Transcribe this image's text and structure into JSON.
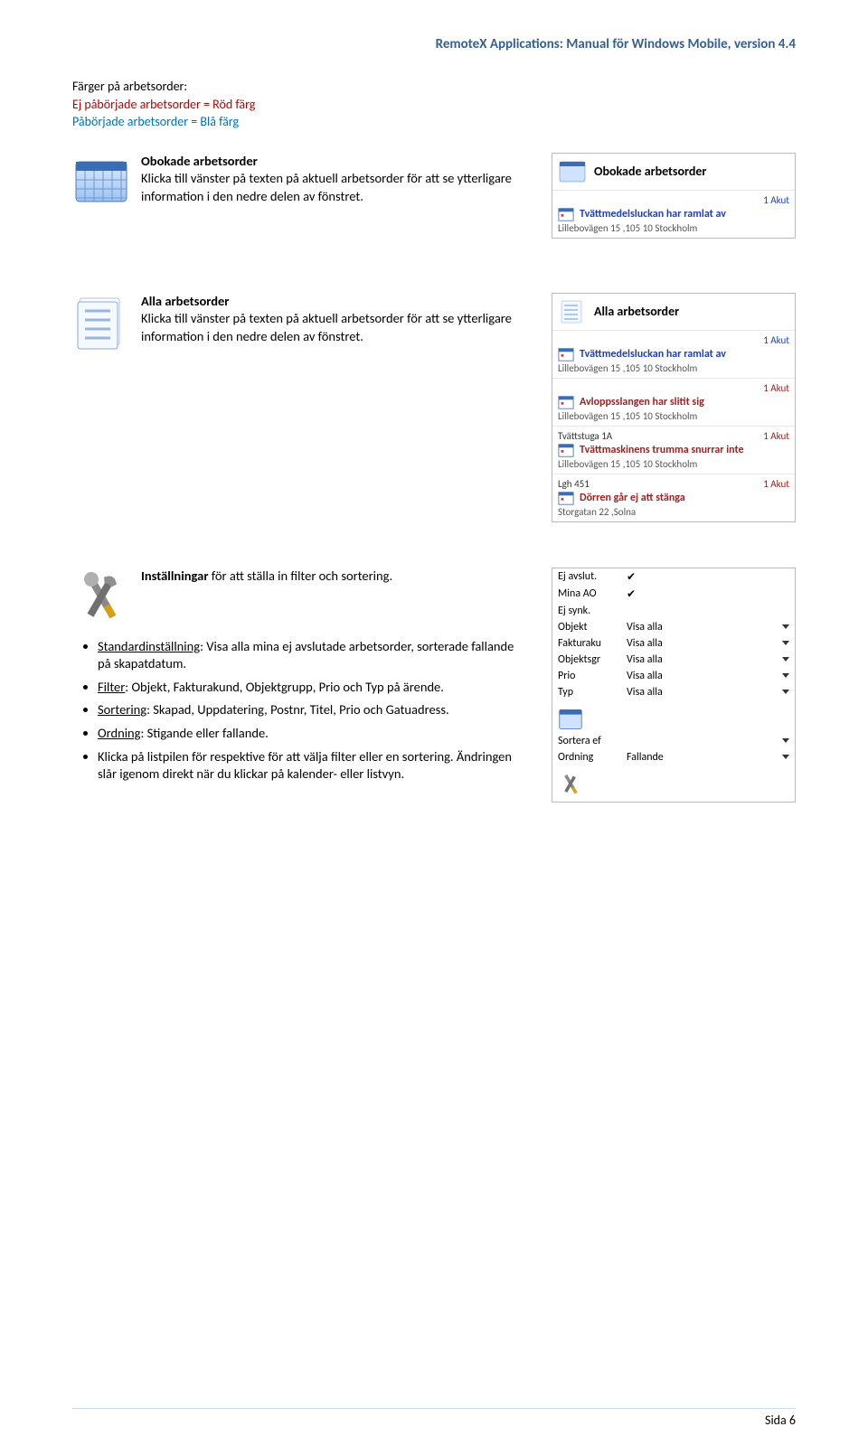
{
  "doc_header": {
    "text": "RemoteX Applications: Manual för Windows Mobile, version 4.4",
    "color": "#365f91"
  },
  "legend": {
    "line1": "Färger på arbetsorder:",
    "line2": "Ej påbörjade arbetsorder = Röd färg",
    "line3": "Påbörjade arbetsorder = Blå färg"
  },
  "section1": {
    "title": "Obokade arbetsorder",
    "body": "Klicka till vänster på texten på aktuell arbetsorder för att se ytterligare information i den nedre delen av fönstret.",
    "panel": {
      "title": "Obokade arbetsorder",
      "items": [
        {
          "right": "1 Akut",
          "title": "Tvättmedelsluckan har ramlat av",
          "addr": "Lillebovägen 15 ,105 10 Stockholm",
          "color": "blue"
        }
      ]
    }
  },
  "section2": {
    "title": "Alla arbetsorder",
    "body": "Klicka till vänster på texten på aktuell arbetsorder för att se ytterligare information i den nedre delen av fönstret.",
    "panel": {
      "title": "Alla arbetsorder",
      "items": [
        {
          "right": "1 Akut",
          "title": "Tvättmedelsluckan har ramlat av",
          "addr": "Lillebovägen 15 ,105 10 Stockholm",
          "color": "blue"
        },
        {
          "right": "1 Akut",
          "title": "Avloppsslangen har slitit sig",
          "addr": "Lillebovägen 15 ,105 10 Stockholm",
          "color": "red"
        },
        {
          "left": "Tvättstuga 1A",
          "right": "1 Akut",
          "title": "Tvättmaskinens trumma snurrar inte",
          "addr": "Lillebovägen 15 ,105 10 Stockholm",
          "color": "red"
        },
        {
          "left": "Lgh 451",
          "right": "1 Akut",
          "title": "Dörren går ej att stänga",
          "addr": "Storgatan 22 ,Solna",
          "color": "red"
        }
      ]
    }
  },
  "section3": {
    "title": "Inställningar",
    "tail": " för att ställa in filter och sortering.",
    "bullets": [
      {
        "u": "Standardinställning",
        "rest": ": Visa alla mina ej avslutade arbetsorder, sorterade fallande på skapatdatum."
      },
      {
        "u": "Filter",
        "rest": ": Objekt, Fakturakund, Objektgrupp, Prio och Typ på ärende."
      },
      {
        "u": "Sortering",
        "rest": ": Skapad, Uppdatering, Postnr, Titel, Prio och Gatuadress."
      },
      {
        "u": "Ordning",
        "rest": ": Stigande eller fallande."
      },
      {
        "plain": "Klicka på listpilen för respektive för att välja filter eller en sortering. Ändringen slår igenom direkt när du klickar på kalender- eller listvyn."
      }
    ],
    "settings": {
      "rows_check": [
        {
          "label": "Ej avslut.",
          "checked": true
        },
        {
          "label": "Mina AO",
          "checked": true
        },
        {
          "label": "Ej synk.",
          "checked": false
        }
      ],
      "rows_dd": [
        {
          "label": "Objekt",
          "value": "Visa alla"
        },
        {
          "label": "Fakturaku",
          "value": "Visa alla"
        },
        {
          "label": "Objektsgr",
          "value": "Visa alla"
        },
        {
          "label": "Prio",
          "value": "Visa alla"
        },
        {
          "label": "Typ",
          "value": "Visa alla"
        }
      ],
      "rows_dd2": [
        {
          "label": "Sortera ef",
          "value": ""
        },
        {
          "label": "Ordning",
          "value": "Fallande"
        }
      ]
    }
  },
  "footer": {
    "text": "Sida 6"
  },
  "colors": {
    "headerBlue": "#365f91",
    "legendRed": "#c00000",
    "legendBlue": "#0070c0",
    "panelLinkBlue": "#1d3fbf",
    "panelLinkRed": "#a02020"
  }
}
